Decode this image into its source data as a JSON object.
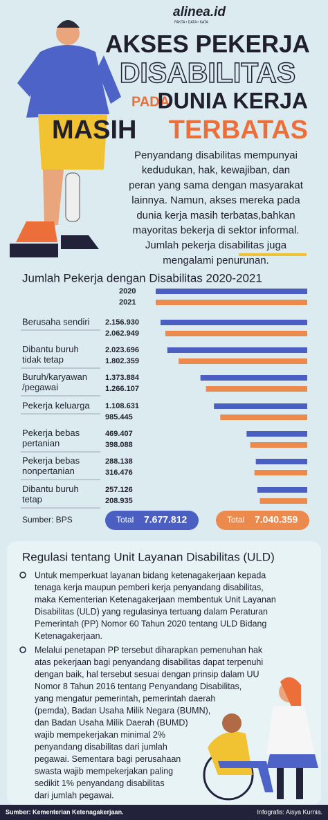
{
  "header": {
    "logo": "alinea.id",
    "tagline": "FAKTA • DATA • KATA",
    "title_lines": [
      "AKSES PEKERJA",
      "DISABILITAS",
      "PADA",
      "DUNIA KERJA",
      "MASIH",
      "TERBATAS"
    ]
  },
  "intro": {
    "lines": [
      "Penyandang disabilitas mempunyai",
      "kedudukan, hak, kewajiban, dan",
      "peran yang sama dengan masyarakat",
      "lainnya. Namun, akses mereka pada",
      "dunia kerja masih terbatas,bahkan",
      "mayoritas bekerja di sektor informal.",
      "Jumlah pekerja disabilitas juga",
      "mengalami penurunan."
    ]
  },
  "chart_data": {
    "type": "bar",
    "orientation": "horizontal",
    "title": "Jumlah Pekerja dengan Disabilitas 2020-2021",
    "categories": [
      "Berusaha sendiri",
      "Dibantu buruh\ntidak tetap",
      "Buruh/karyawan\n/pegawai",
      "Pekerja keluarga",
      "Pekerja bebas\npertanian",
      "Pekerja bebas\nnonpertanian",
      "Dibantu buruh\ntetap"
    ],
    "series": [
      {
        "name": "2020",
        "color": "#4a5fc1",
        "values": [
          2156930,
          2023696,
          1373884,
          1108631,
          469407,
          288138,
          257126
        ],
        "value_labels": [
          "2.156.930",
          "2.023.696",
          "1.373.884",
          "1.108.631",
          "469.407",
          "288.138",
          "257.126"
        ]
      },
      {
        "name": "2021",
        "color": "#ec8a4e",
        "values": [
          2062949,
          1802359,
          1266107,
          985445,
          398088,
          316476,
          208935
        ],
        "value_labels": [
          "2.062.949",
          "1.802.359",
          "1.266.107",
          "985.445",
          "398.088",
          "316.476",
          "208.935"
        ]
      }
    ],
    "xlim": [
      -720000,
      2170000
    ],
    "totals": [
      {
        "label": "Total",
        "value": 7677812,
        "value_label": "7.677.812"
      },
      {
        "label": "Total",
        "value": 7040359,
        "value_label": "7.040.359"
      }
    ],
    "source": "Sumber: BPS"
  },
  "regulation": {
    "title": "Regulasi tentang Unit Layanan Disabilitas (ULD)",
    "bullets": [
      {
        "lines": [
          "Untuk memperkuat layanan bidang ketenagakerjaan kepada",
          "tenaga kerja maupun pemberi kerja penyandang disabilitas,",
          "maka Kementerian Ketenagakerjaan membentuk Unit Layanan",
          "Disabilitas (ULD) yang regulasinya tertuang dalam Peraturan",
          "Pemerintah (PP) Nomor 60 Tahun 2020 tentang ULD Bidang",
          "Ketenagakerjaan."
        ]
      },
      {
        "lines": [
          "Melalui penetapan PP tersebut diharapkan pemenuhan hak",
          "atas pekerjaan bagi penyandang disabilitas dapat terpenuhi",
          "dengan baik, hal tersebut sesuai dengan prinsip dalam UU",
          "Nomor 8 Tahun 2016 tentang Penyandang Disabilitas,",
          "yang mengatur pemerintah, pemerintah daerah",
          "(pemda), Badan Usaha Milik Negara (BUMN),",
          "dan Badan Usaha Milik Daerah (BUMD)",
          "wajib mempekerjakan minimal 2%",
          "penyandang disabilitas dari jumlah",
          "pegawai. Sementara bagi perusahaan",
          "swasta wajib mempekerjakan paling",
          "sedikit 1% penyandang disabilitas",
          "dari jumlah pegawai."
        ]
      }
    ]
  },
  "footer": {
    "source": "Sumber: Kementerian Ketenagakerjaan.",
    "credit": "Infografis: Aisya Kurnia."
  }
}
